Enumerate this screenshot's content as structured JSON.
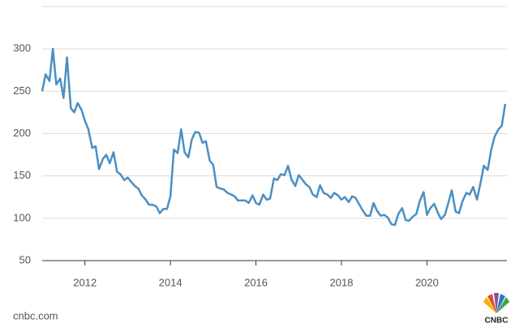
{
  "chart_data": {
    "type": "line",
    "x": [
      2011,
      2011.08,
      2011.17,
      2011.25,
      2011.33,
      2011.42,
      2011.5,
      2011.58,
      2011.67,
      2011.75,
      2011.83,
      2011.92,
      2012,
      2012.08,
      2012.17,
      2012.25,
      2012.33,
      2012.42,
      2012.5,
      2012.58,
      2012.67,
      2012.75,
      2012.83,
      2012.92,
      2013,
      2013.08,
      2013.17,
      2013.25,
      2013.33,
      2013.42,
      2013.5,
      2013.58,
      2013.67,
      2013.75,
      2013.83,
      2013.92,
      2014,
      2014.08,
      2014.17,
      2014.25,
      2014.33,
      2014.42,
      2014.5,
      2014.58,
      2014.67,
      2014.75,
      2014.83,
      2014.92,
      2015,
      2015.08,
      2015.17,
      2015.25,
      2015.33,
      2015.42,
      2015.5,
      2015.58,
      2015.67,
      2015.75,
      2015.83,
      2015.92,
      2016,
      2016.08,
      2016.17,
      2016.25,
      2016.33,
      2016.42,
      2016.5,
      2016.58,
      2016.67,
      2016.75,
      2016.83,
      2016.92,
      2017,
      2017.08,
      2017.17,
      2017.25,
      2017.33,
      2017.42,
      2017.5,
      2017.58,
      2017.67,
      2017.75,
      2017.83,
      2017.92,
      2018,
      2018.08,
      2018.17,
      2018.25,
      2018.33,
      2018.42,
      2018.5,
      2018.58,
      2018.67,
      2018.75,
      2018.83,
      2018.92,
      2019,
      2019.08,
      2019.17,
      2019.25,
      2019.33,
      2019.42,
      2019.5,
      2019.58,
      2019.67,
      2019.75,
      2019.83,
      2019.92,
      2020,
      2020.08,
      2020.17,
      2020.25,
      2020.33,
      2020.42,
      2020.5,
      2020.58,
      2020.67,
      2020.75,
      2020.83,
      2020.92,
      2021,
      2021.08,
      2021.17,
      2021.25,
      2021.33,
      2021.42,
      2021.5,
      2021.58,
      2021.67,
      2021.75,
      2021.83
    ],
    "series": [
      {
        "color": "#4a8fc3",
        "values": [
          250,
          270,
          262,
          300,
          258,
          265,
          242,
          290,
          230,
          225,
          236,
          228,
          215,
          205,
          183,
          185,
          158,
          170,
          175,
          165,
          178,
          155,
          152,
          145,
          148,
          143,
          138,
          135,
          127,
          122,
          116,
          116,
          114,
          106,
          111,
          111,
          126,
          181,
          177,
          205,
          178,
          172,
          193,
          202,
          201,
          189,
          191,
          168,
          163,
          137,
          135,
          134,
          130,
          128,
          126,
          121,
          121,
          121,
          118,
          127,
          118,
          116,
          128,
          122,
          123,
          147,
          145,
          152,
          151,
          162,
          146,
          138,
          151,
          146,
          140,
          137,
          128,
          125,
          139,
          130,
          128,
          124,
          130,
          127,
          122,
          125,
          119,
          126,
          124,
          116,
          109,
          103,
          103,
          118,
          109,
          103,
          104,
          101,
          93,
          92,
          105,
          112,
          98,
          97,
          102,
          105,
          120,
          131,
          104,
          112,
          117,
          107,
          99,
          104,
          118,
          133,
          108,
          106,
          120,
          130,
          128,
          137,
          122,
          141,
          162,
          157,
          180,
          196,
          205,
          209,
          235
        ]
      }
    ],
    "xlim": [
      2011,
      2021.87
    ],
    "xticks": [
      2012,
      2014,
      2016,
      2018,
      2020
    ],
    "ylim": [
      50,
      350
    ],
    "yticks": [
      50,
      100,
      150,
      200,
      250,
      300
    ],
    "grid": true,
    "source": "cnbc.com",
    "logo": "CNBC"
  }
}
